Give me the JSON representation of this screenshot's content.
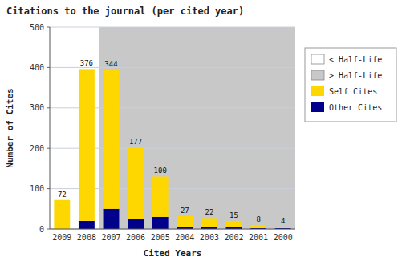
{
  "chart_data": {
    "type": "bar",
    "title": "Citations to the journal (per cited year)",
    "x_label": "Cited Years",
    "y_label": "Number of Cites",
    "categories": [
      "2009",
      "2008",
      "2007",
      "2006",
      "2005",
      "2004",
      "2003",
      "2002",
      "2001",
      "2000"
    ],
    "series": [
      {
        "name": "Self Cites",
        "color": "#FFD700",
        "values": [
          72,
          376,
          344,
          177,
          100,
          27,
          22,
          15,
          8,
          4
        ],
        "data_labels": true
      },
      {
        "name": "Other Cites",
        "color": "#00008B",
        "values": [
          0,
          20,
          50,
          25,
          30,
          5,
          5,
          5,
          2,
          2
        ]
      }
    ],
    "annotations": [
      {
        "text": "< Half-Life",
        "color": "#FFFFFF"
      },
      {
        "text": "> Half-Life",
        "color": "#C8C8C8",
        "category": "2007"
      }
    ],
    "stacked": true,
    "ylim": [
      0,
      500
    ],
    "yticks": [
      0,
      100,
      200,
      300,
      400,
      500
    ],
    "grid": true,
    "legend": "right"
  }
}
